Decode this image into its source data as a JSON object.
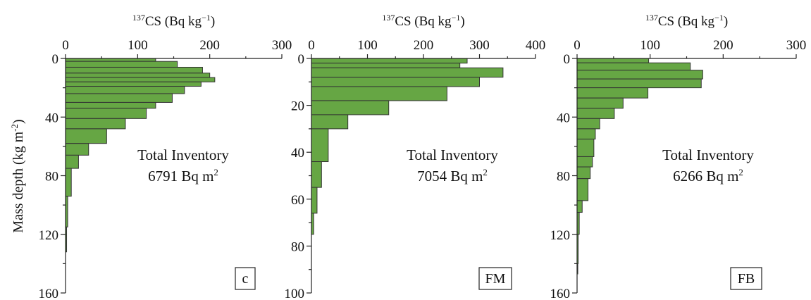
{
  "y_axis_label": "Mass depth (kg m",
  "y_axis_label_sup": "-2",
  "y_axis_label_end": ")",
  "chart_data": [
    {
      "type": "bar",
      "orientation": "horizontal",
      "panel_label": "c",
      "xlabel_sup": "137",
      "xlabel": "CS (Bq kg",
      "xlabel_unit_sup": "−1",
      "xlabel_end": ")",
      "xlim": [
        0,
        300
      ],
      "xticks": [
        0,
        100,
        200,
        300
      ],
      "ylim": [
        0,
        160
      ],
      "yticks": [
        0,
        40,
        80,
        120,
        160
      ],
      "inventory_title": "Total Inventory",
      "inventory_value": "6791 Bq m",
      "inventory_sup": "2",
      "layers": [
        {
          "top": 0,
          "bottom": 2,
          "value": 125
        },
        {
          "top": 2,
          "bottom": 6,
          "value": 155
        },
        {
          "top": 6,
          "bottom": 10,
          "value": 190
        },
        {
          "top": 10,
          "bottom": 13,
          "value": 200
        },
        {
          "top": 13,
          "bottom": 16,
          "value": 207
        },
        {
          "top": 16,
          "bottom": 19,
          "value": 188
        },
        {
          "top": 19,
          "bottom": 24,
          "value": 165
        },
        {
          "top": 24,
          "bottom": 30,
          "value": 148
        },
        {
          "top": 30,
          "bottom": 34,
          "value": 125
        },
        {
          "top": 34,
          "bottom": 41,
          "value": 112
        },
        {
          "top": 41,
          "bottom": 48,
          "value": 83
        },
        {
          "top": 48,
          "bottom": 58,
          "value": 57
        },
        {
          "top": 58,
          "bottom": 66,
          "value": 32
        },
        {
          "top": 66,
          "bottom": 75,
          "value": 18
        },
        {
          "top": 75,
          "bottom": 94,
          "value": 8
        },
        {
          "top": 94,
          "bottom": 115,
          "value": 3
        },
        {
          "top": 115,
          "bottom": 132,
          "value": 1.5
        }
      ]
    },
    {
      "type": "bar",
      "orientation": "horizontal",
      "panel_label": "FM",
      "xlabel_sup": "137",
      "xlabel": "CS (Bq kg",
      "xlabel_unit_sup": "−1",
      "xlabel_end": ")",
      "xlim": [
        0,
        400
      ],
      "xticks": [
        0,
        100,
        200,
        300,
        400
      ],
      "ylim": [
        0,
        100
      ],
      "yticks": [
        0,
        20,
        40,
        60,
        80,
        100
      ],
      "inventory_title": "Total Inventory",
      "inventory_value": "7054 Bq m",
      "inventory_sup": "2",
      "layers": [
        {
          "top": 0,
          "bottom": 2,
          "value": 278
        },
        {
          "top": 2,
          "bottom": 4,
          "value": 265
        },
        {
          "top": 4,
          "bottom": 8,
          "value": 342
        },
        {
          "top": 8,
          "bottom": 12,
          "value": 300
        },
        {
          "top": 12,
          "bottom": 18,
          "value": 242
        },
        {
          "top": 18,
          "bottom": 24,
          "value": 138
        },
        {
          "top": 24,
          "bottom": 30,
          "value": 65
        },
        {
          "top": 30,
          "bottom": 44,
          "value": 30
        },
        {
          "top": 44,
          "bottom": 55,
          "value": 18
        },
        {
          "top": 55,
          "bottom": 66,
          "value": 10
        },
        {
          "top": 66,
          "bottom": 75,
          "value": 4
        }
      ]
    },
    {
      "type": "bar",
      "orientation": "horizontal",
      "panel_label": "FB",
      "xlabel_sup": "137",
      "xlabel": "CS (Bq kg",
      "xlabel_unit_sup": "−1",
      "xlabel_end": ")",
      "xlim": [
        0,
        300
      ],
      "xticks": [
        0,
        100,
        200,
        300
      ],
      "ylim": [
        0,
        160
      ],
      "yticks": [
        0,
        40,
        80,
        120,
        160
      ],
      "inventory_title": "Total Inventory",
      "inventory_value": "6266 Bq m",
      "inventory_sup": "2",
      "layers": [
        {
          "top": 0,
          "bottom": 3,
          "value": 98
        },
        {
          "top": 3,
          "bottom": 8,
          "value": 155
        },
        {
          "top": 8,
          "bottom": 14,
          "value": 172
        },
        {
          "top": 14,
          "bottom": 20,
          "value": 170
        },
        {
          "top": 20,
          "bottom": 27,
          "value": 97
        },
        {
          "top": 27,
          "bottom": 34,
          "value": 63
        },
        {
          "top": 34,
          "bottom": 41,
          "value": 51
        },
        {
          "top": 41,
          "bottom": 48,
          "value": 31
        },
        {
          "top": 48,
          "bottom": 55,
          "value": 25
        },
        {
          "top": 55,
          "bottom": 67,
          "value": 23
        },
        {
          "top": 67,
          "bottom": 74,
          "value": 21
        },
        {
          "top": 74,
          "bottom": 82,
          "value": 18
        },
        {
          "top": 82,
          "bottom": 97,
          "value": 15
        },
        {
          "top": 97,
          "bottom": 105,
          "value": 7
        },
        {
          "top": 105,
          "bottom": 120,
          "value": 3
        },
        {
          "top": 120,
          "bottom": 140,
          "value": 1.5
        },
        {
          "top": 140,
          "bottom": 147,
          "value": 1
        }
      ]
    }
  ]
}
